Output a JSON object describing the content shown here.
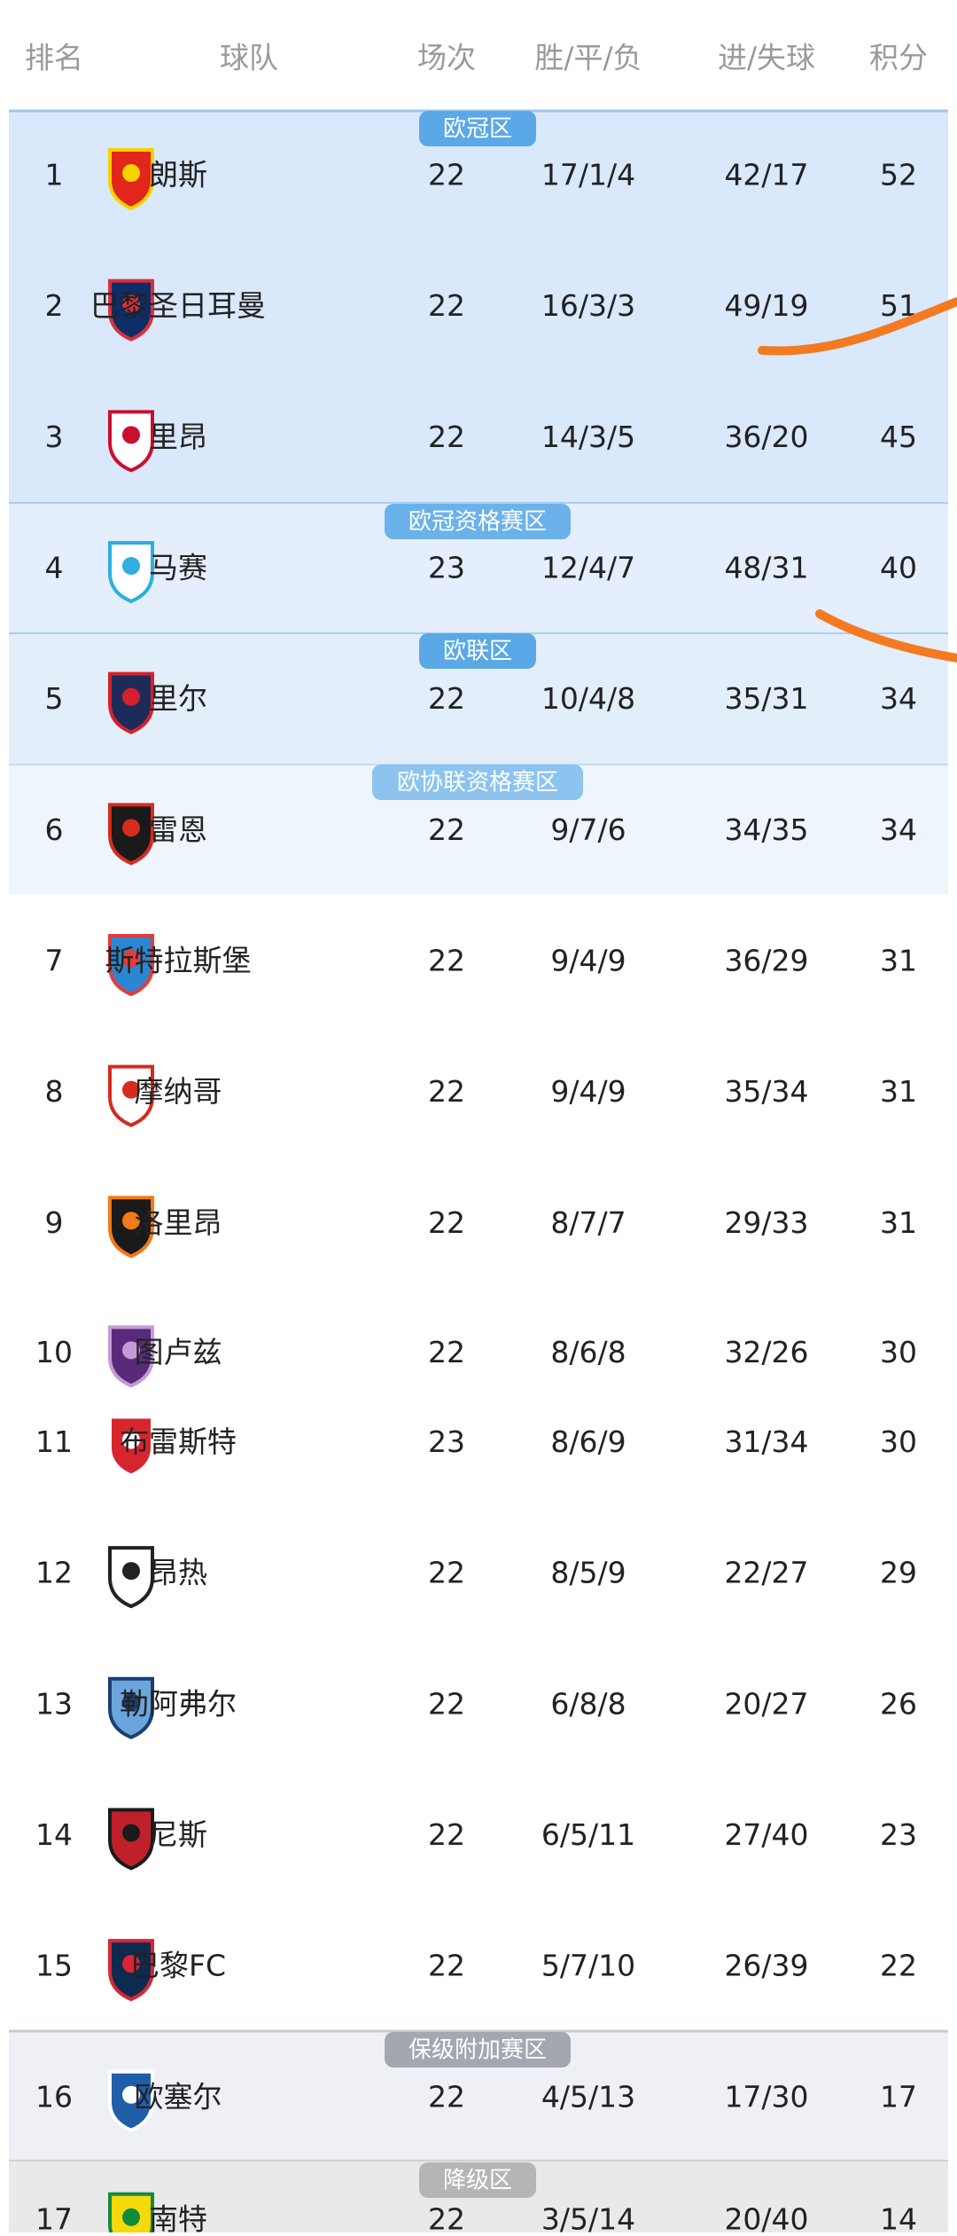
{
  "header": [
    "排名",
    "球队",
    "场次",
    "胜/平/负",
    "进/失球",
    "积分"
  ],
  "zones": [
    "欧冠区",
    "欧冠资格赛区",
    "欧联区",
    "欧协联资格赛区",
    "保级附加赛区",
    "降级区"
  ],
  "rows": [
    {
      "rank": 1,
      "team": "朗斯",
      "played": 22,
      "record": "17/1/4",
      "goals": "42/17",
      "points": 52
    },
    {
      "rank": 2,
      "team": "巴黎圣日耳曼",
      "played": 22,
      "record": "16/3/3",
      "goals": "49/19",
      "points": 51
    },
    {
      "rank": 3,
      "team": "里昂",
      "played": 22,
      "record": "14/3/5",
      "goals": "36/20",
      "points": 45
    },
    {
      "rank": 4,
      "team": "马赛",
      "played": 23,
      "record": "12/4/7",
      "goals": "48/31",
      "points": 40
    },
    {
      "rank": 5,
      "team": "里尔",
      "played": 22,
      "record": "10/4/8",
      "goals": "35/31",
      "points": 34
    },
    {
      "rank": 6,
      "team": "雷恩",
      "played": 22,
      "record": "9/7/6",
      "goals": "34/35",
      "points": 34
    },
    {
      "rank": 7,
      "team": "斯特拉斯堡",
      "played": 22,
      "record": "9/4/9",
      "goals": "36/29",
      "points": 31
    },
    {
      "rank": 8,
      "team": "摩纳哥",
      "played": 22,
      "record": "9/4/9",
      "goals": "35/34",
      "points": 31
    },
    {
      "rank": 9,
      "team": "洛里昂",
      "played": 22,
      "record": "8/7/7",
      "goals": "29/33",
      "points": 31
    },
    {
      "rank": 10,
      "team": "图卢兹",
      "played": 22,
      "record": "8/6/8",
      "goals": "32/26",
      "points": 30
    },
    {
      "rank": 11,
      "team": "布雷斯特",
      "played": 23,
      "record": "8/6/9",
      "goals": "31/34",
      "points": 30
    },
    {
      "rank": 12,
      "team": "昂热",
      "played": 22,
      "record": "8/5/9",
      "goals": "22/27",
      "points": 29
    },
    {
      "rank": 13,
      "team": "勒阿弗尔",
      "played": 22,
      "record": "6/8/8",
      "goals": "20/27",
      "points": 26
    },
    {
      "rank": 14,
      "team": "尼斯",
      "played": 22,
      "record": "6/5/11",
      "goals": "27/40",
      "points": 23
    },
    {
      "rank": 15,
      "team": "巴黎FC",
      "played": 22,
      "record": "5/7/10",
      "goals": "26/39",
      "points": 22
    },
    {
      "rank": 16,
      "team": "欧塞尔",
      "played": 22,
      "record": "4/5/13",
      "goals": "17/30",
      "points": 17
    },
    {
      "rank": 17,
      "team": "南特",
      "played": 22,
      "record": "3/5/14",
      "goals": "20/40",
      "points": 14
    }
  ]
}
